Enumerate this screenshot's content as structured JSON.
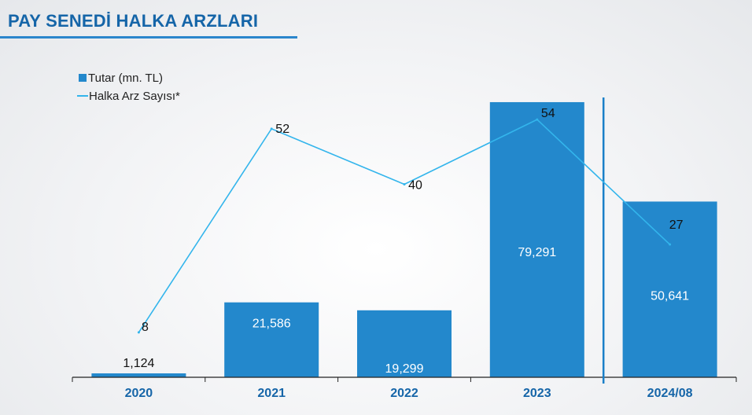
{
  "title": "PAY SENEDİ HALKA ARZLARI",
  "chart_data": {
    "type": "bar",
    "categories": [
      "2020",
      "2021",
      "2022",
      "2023",
      "2024/08"
    ],
    "series": [
      {
        "name": "Tutar (mn. TL)",
        "type": "bar",
        "values": [
          1124,
          21586,
          19299,
          79291,
          50641
        ],
        "labels": [
          "1,124",
          "21,586",
          "19,299",
          "79,291",
          "50,641"
        ],
        "color": "#2388cc"
      },
      {
        "name": "Halka Arz Sayısı*",
        "type": "line",
        "values": [
          8,
          52,
          40,
          54,
          27
        ],
        "labels": [
          "8",
          "52",
          "40",
          "54",
          "27"
        ],
        "color": "#33b5ec"
      }
    ],
    "bar_ylim": [
      0,
      82000
    ],
    "line_ylim": [
      0,
      62
    ],
    "legend_position": "top-left",
    "separator_before": "2024/08"
  }
}
